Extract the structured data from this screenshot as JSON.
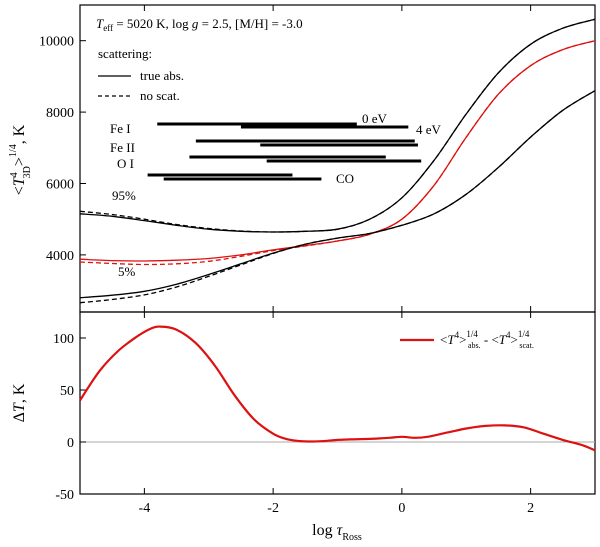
{
  "chart_data": [
    {
      "type": "line",
      "title": "",
      "annotation": {
        "teff_sym": "T",
        "teff_sub": "eff",
        "teff_rest": " = 5020 K, log ",
        "g_sym": "g",
        "g_rest": " = 2.5, [M/H] = -3.0"
      },
      "ylabel": {
        "pre": "<",
        "sym": "T",
        "sup": "4",
        "sub": "3D",
        "post": ">",
        "exp": "1/4",
        "unit": ", K"
      },
      "xlim": [
        -5,
        3
      ],
      "ylim": [
        2400,
        11000
      ],
      "yticks": [
        4000,
        6000,
        8000,
        10000
      ],
      "xticks": [
        -4,
        -2,
        0,
        2
      ],
      "legend": {
        "title": "scattering:",
        "items": [
          {
            "label": "true abs.",
            "style": "solid"
          },
          {
            "label": "no scat.",
            "style": "dashed"
          }
        ]
      },
      "curve_labels": [
        "95%",
        "5%"
      ],
      "formation_ranges": {
        "species": [
          "Fe I",
          "Fe II",
          "O I",
          "CO"
        ],
        "energy_labels": [
          "0 eV",
          "4 eV"
        ],
        "bars": [
          {
            "species": "Fe I",
            "from": -3.8,
            "to": -0.7
          },
          {
            "species": "Fe I",
            "from": -2.5,
            "to": 0.1
          },
          {
            "species": "Fe II",
            "from": -3.2,
            "to": 0.2
          },
          {
            "species": "Fe II",
            "from": -2.2,
            "to": 0.25
          },
          {
            "species": "O I",
            "from": -3.3,
            "to": -0.25
          },
          {
            "species": "O I",
            "from": -2.1,
            "to": 0.3
          },
          {
            "species": "CO",
            "from": -3.95,
            "to": -1.7
          },
          {
            "species": "CO",
            "from": -3.7,
            "to": -1.25
          }
        ]
      },
      "series": [
        {
          "name": "95% true abs.",
          "color": "#000000",
          "style": "solid",
          "x": [
            -5,
            -4.5,
            -4,
            -3.5,
            -3,
            -2.5,
            -2,
            -1.5,
            -1,
            -0.5,
            0,
            0.5,
            1,
            1.5,
            2,
            2.5,
            3
          ],
          "y": [
            5150,
            5080,
            4960,
            4830,
            4720,
            4660,
            4640,
            4660,
            4720,
            5000,
            5600,
            6650,
            7950,
            9100,
            9900,
            10350,
            10600
          ]
        },
        {
          "name": "95% no scat.",
          "color": "#000000",
          "style": "dashed",
          "x": [
            -5,
            -4.5,
            -4,
            -3.5,
            -3,
            -2.5,
            -2,
            -1.5,
            -1,
            -0.5,
            0,
            0.5,
            1,
            1.5,
            2,
            2.5,
            3
          ],
          "y": [
            5220,
            5130,
            5000,
            4850,
            4740,
            4670,
            4640,
            4660,
            4720,
            5000,
            5600,
            6650,
            7950,
            9100,
            9900,
            10350,
            10600
          ]
        },
        {
          "name": "mean true abs.",
          "color": "#dd1111",
          "style": "solid",
          "x": [
            -5,
            -4.5,
            -4,
            -3.5,
            -3,
            -2.5,
            -2,
            -1.5,
            -1,
            -0.5,
            0,
            0.5,
            1,
            1.5,
            2,
            2.5,
            3
          ],
          "y": [
            3880,
            3840,
            3830,
            3850,
            3900,
            4000,
            4140,
            4260,
            4390,
            4580,
            5000,
            5950,
            7300,
            8500,
            9300,
            9750,
            10000
          ]
        },
        {
          "name": "mean no scat.",
          "color": "#dd1111",
          "style": "dashed",
          "x": [
            -5,
            -4.5,
            -4,
            -3.5,
            -3,
            -2.5,
            -2,
            -1.5,
            -1,
            -0.5,
            0,
            0.5,
            1,
            1.5,
            2,
            2.5,
            3
          ],
          "y": [
            3800,
            3760,
            3730,
            3750,
            3820,
            3960,
            4120,
            4250,
            4390,
            4580,
            5000,
            5950,
            7300,
            8500,
            9300,
            9750,
            10000
          ]
        },
        {
          "name": "5% true abs.",
          "color": "#000000",
          "style": "solid",
          "x": [
            -5,
            -4.5,
            -4,
            -3.5,
            -3,
            -2.5,
            -2,
            -1.5,
            -1,
            -0.5,
            0,
            0.5,
            1,
            1.5,
            2,
            2.5,
            3
          ],
          "y": [
            2800,
            2870,
            2980,
            3180,
            3450,
            3750,
            4050,
            4300,
            4470,
            4600,
            4830,
            5150,
            5700,
            6450,
            7300,
            8050,
            8600
          ]
        },
        {
          "name": "5% no scat.",
          "color": "#000000",
          "style": "dashed",
          "x": [
            -5,
            -4.5,
            -4,
            -3.5,
            -3,
            -2.5,
            -2,
            -1.5,
            -1,
            -0.5,
            0,
            0.5,
            1,
            1.5,
            2,
            2.5,
            3
          ],
          "y": [
            2660,
            2750,
            2880,
            3100,
            3400,
            3720,
            4040,
            4300,
            4470,
            4600,
            4830,
            5150,
            5700,
            6450,
            7300,
            8050,
            8600
          ]
        }
      ]
    },
    {
      "type": "line",
      "title": "",
      "xlabel": {
        "text": "log ",
        "sym": "τ",
        "sub": "Ross"
      },
      "ylabel": {
        "text": "Δ",
        "sym": "T",
        "unit": ", K"
      },
      "xlim": [
        -5,
        3
      ],
      "ylim": [
        -50,
        125
      ],
      "yticks": [
        -50,
        0,
        50,
        100
      ],
      "xticks": [
        -4,
        -2,
        0,
        2
      ],
      "xtick_labels": [
        "-4",
        "-2",
        "0",
        "2"
      ],
      "reference_line": 0,
      "legend": {
        "label": {
          "a_pre": "<",
          "a_sym": "T",
          "a_sup": "4",
          "a_post": ">",
          "a_exp": "1/4",
          "a_sub": "abs.",
          "sep": " - ",
          "b_pre": "<",
          "b_sym": "T",
          "b_sup": "4",
          "b_post": ">",
          "b_exp": "1/4",
          "b_sub": "scat."
        },
        "color": "#dd1111"
      },
      "series": [
        {
          "name": "difference",
          "color": "#dd1111",
          "style": "solid",
          "x": [
            -5,
            -4.7,
            -4.4,
            -4.1,
            -3.9,
            -3.75,
            -3.5,
            -3.2,
            -2.9,
            -2.6,
            -2.3,
            -2.0,
            -1.8,
            -1.6,
            -1.4,
            -1.2,
            -1.0,
            -0.8,
            -0.5,
            -0.2,
            0,
            0.2,
            0.4,
            0.7,
            1.0,
            1.3,
            1.6,
            1.9,
            2.2,
            2.5,
            2.8,
            3
          ],
          "y": [
            40,
            68,
            88,
            102,
            109,
            111,
            108,
            95,
            73,
            45,
            22,
            8,
            3,
            1,
            0.5,
            1,
            2,
            2.5,
            3,
            4,
            5,
            4,
            5,
            9,
            13,
            15.5,
            16,
            14,
            8,
            2,
            -3,
            -8
          ]
        }
      ]
    }
  ]
}
